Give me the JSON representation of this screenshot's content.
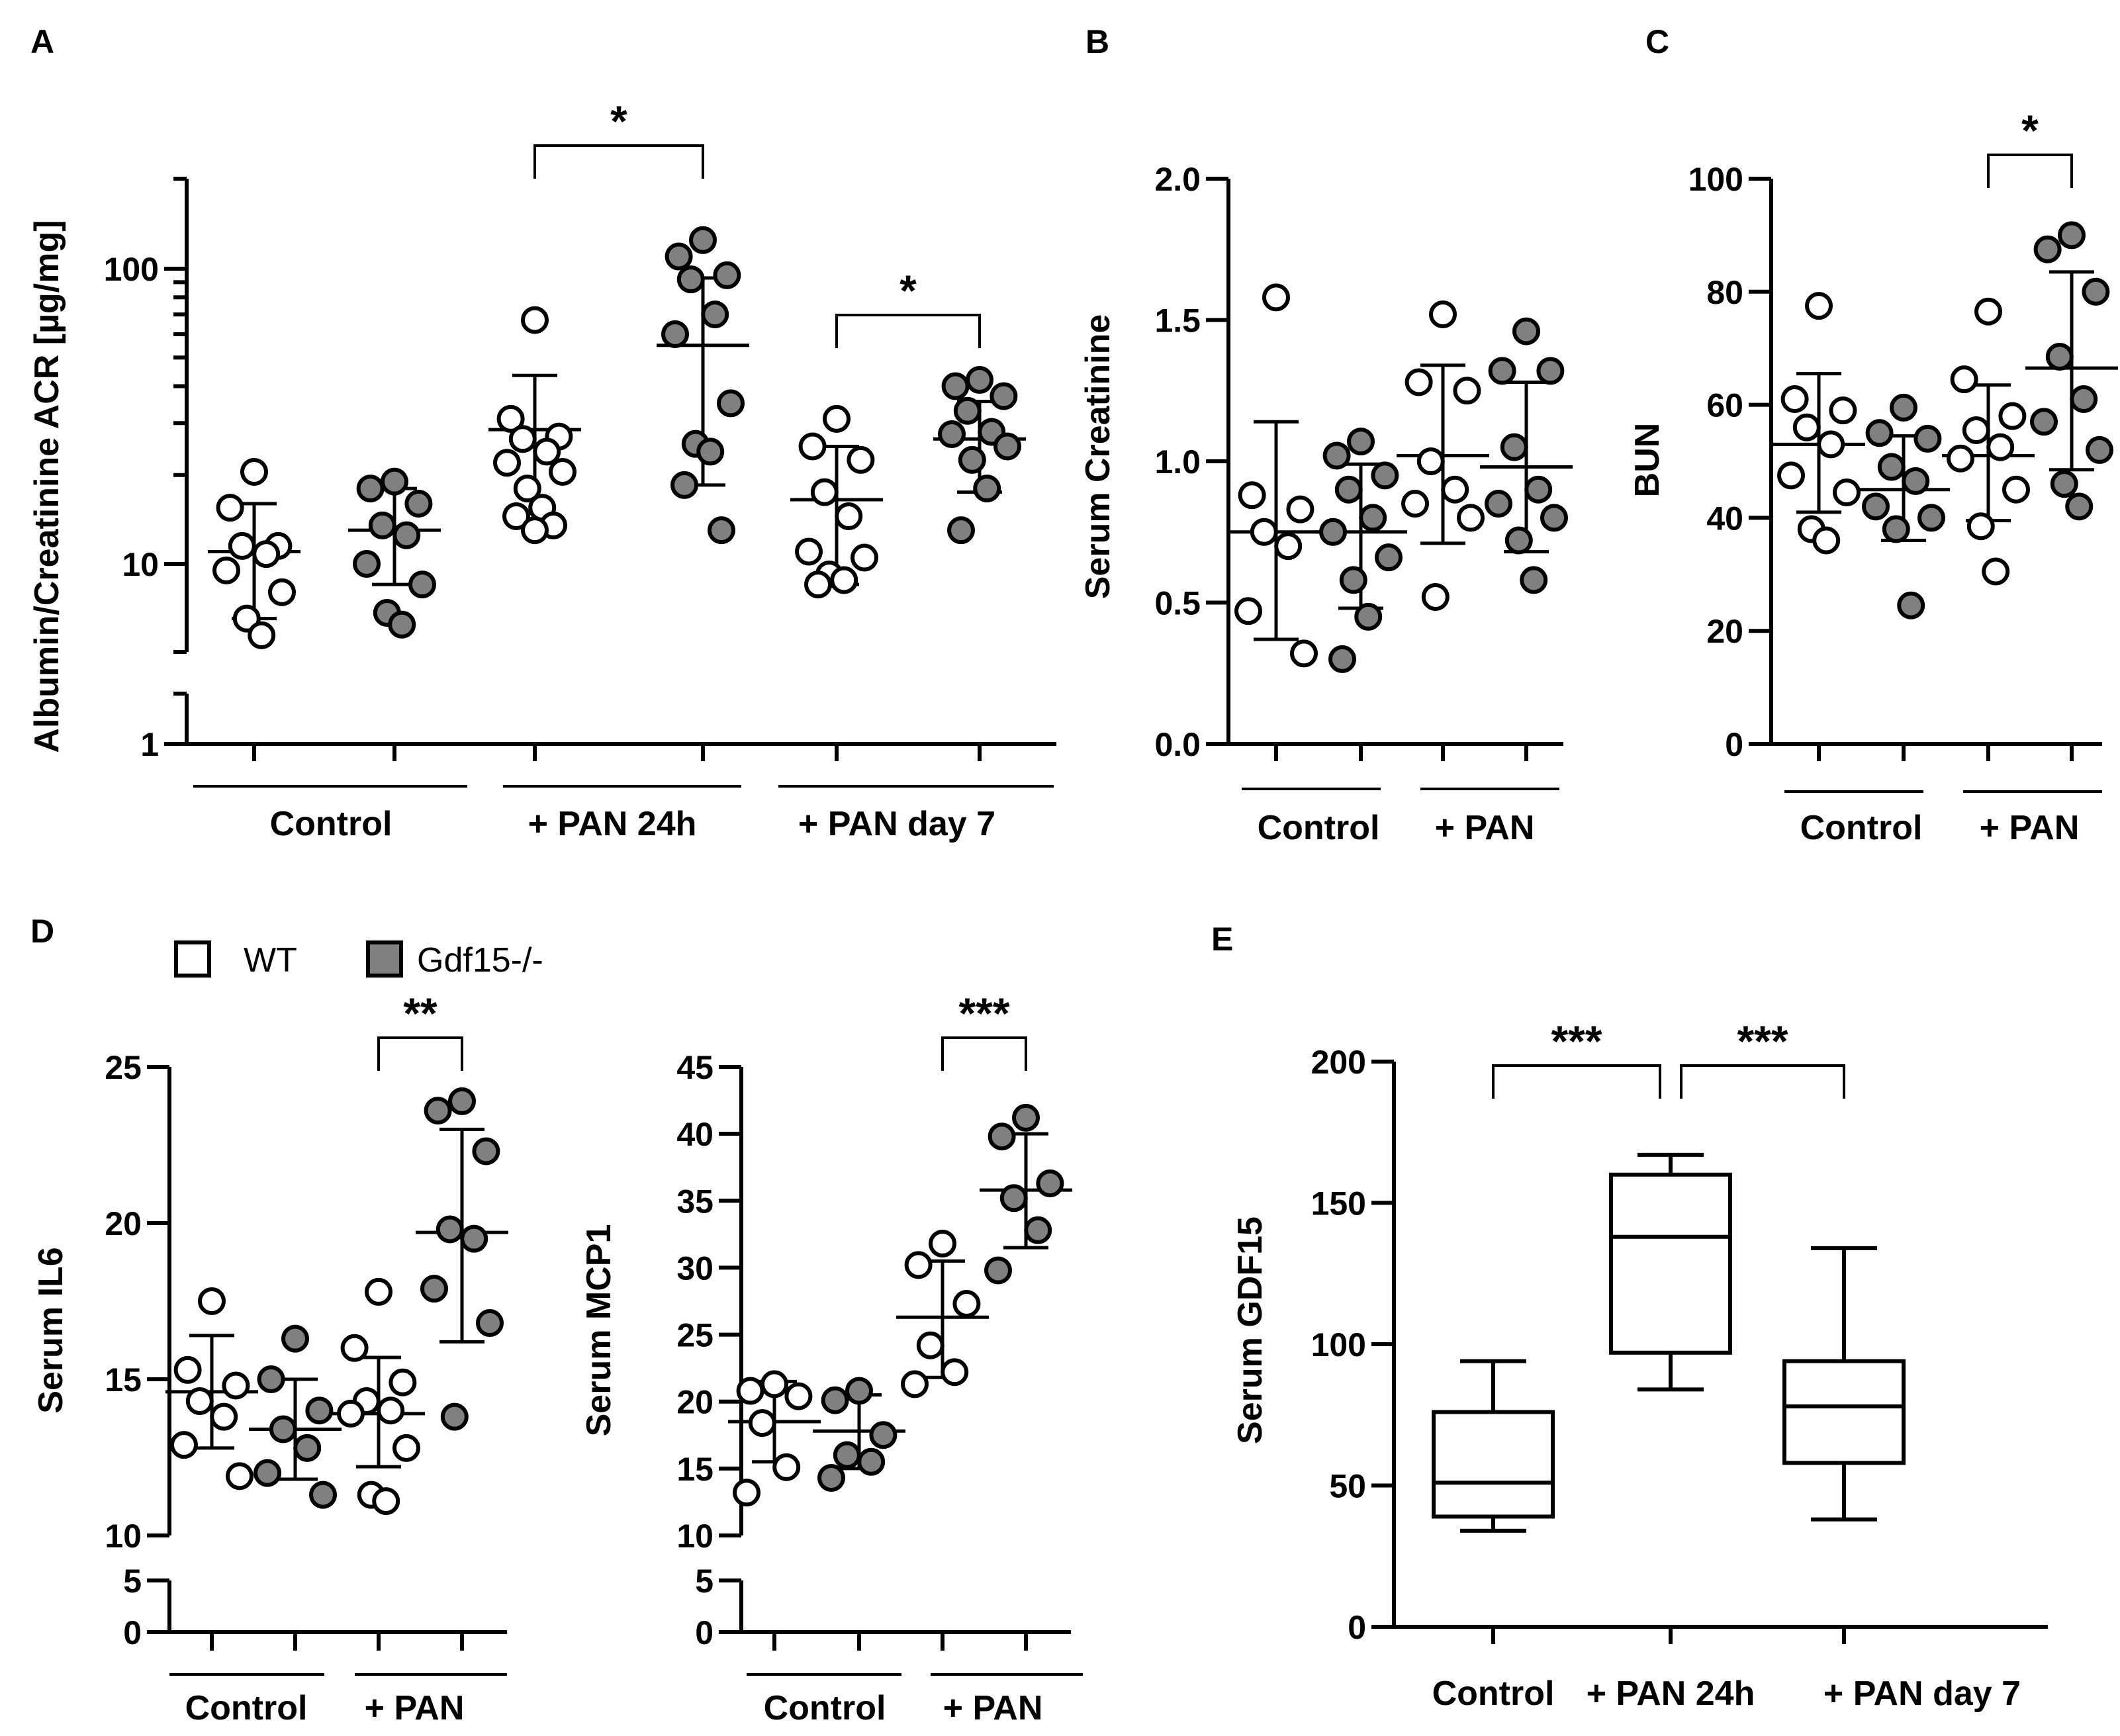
{
  "legend": {
    "wt": {
      "label": "WT",
      "color": "#ffffff"
    },
    "ko": {
      "label": "Gdf15-/-",
      "color": "#808080"
    }
  },
  "chart_data": [
    {
      "id": "A",
      "panel_label": "A",
      "type": "scatter",
      "ylabel": "Albumin/Creatinine ACR [µg/mg]",
      "yscale": "log",
      "ylim": [
        1,
        200
      ],
      "yticks": [
        {
          "v": 1,
          "label": "1"
        },
        {
          "v": 10,
          "label": "10"
        },
        {
          "v": 100,
          "label": "100"
        }
      ],
      "axis_break": [
        2.2,
        3.2
      ],
      "groups": [
        {
          "label": "Control",
          "from": 0,
          "to": 1
        },
        {
          "label": "+ PAN 24h",
          "from": 2,
          "to": 3
        },
        {
          "label": "+ PAN day 7",
          "from": 4,
          "to": 5
        }
      ],
      "series": [
        {
          "genotype": "wt",
          "values": [
            20.5,
            15.5,
            11.5,
            11.5,
            10.8,
            9.5,
            8.0,
            6.5,
            5.7
          ],
          "mean": 11.0,
          "sd_low": 6.5,
          "sd_high": 16.0
        },
        {
          "genotype": "ko",
          "values": [
            19.0,
            18.0,
            16.0,
            13.5,
            12.5,
            10.0,
            8.5,
            6.8,
            6.2
          ],
          "mean": 13.0,
          "sd_low": 8.5,
          "sd_high": 18.0
        },
        {
          "genotype": "wt",
          "values": [
            67.0,
            31.0,
            27.0,
            26.5,
            24.0,
            22.0,
            20.5,
            18.0,
            15.5,
            14.5,
            13.5,
            13.0
          ],
          "mean": 28.5,
          "sd_low": 13.5,
          "sd_high": 43.5
        },
        {
          "genotype": "ko",
          "values": [
            125.0,
            110.0,
            95.0,
            92.0,
            70.0,
            60.0,
            35.0,
            25.5,
            24.0,
            18.5,
            13.0
          ],
          "mean": 55.0,
          "sd_low": 18.5,
          "sd_high": 93.0
        },
        {
          "genotype": "wt",
          "values": [
            31.0,
            25.0,
            22.5,
            17.5,
            14.5,
            11.0,
            10.5,
            9.2,
            8.8,
            8.5
          ],
          "mean": 16.5,
          "sd_low": 8.5,
          "sd_high": 25.0
        },
        {
          "genotype": "ko",
          "values": [
            42.0,
            40.0,
            37.0,
            33.0,
            28.0,
            27.5,
            25.0,
            22.5,
            18.0,
            13.0
          ],
          "mean": 26.5,
          "sd_low": 17.5,
          "sd_high": 35.5
        }
      ],
      "brackets": [
        {
          "from": 2,
          "to": 3,
          "label": "*"
        },
        {
          "from": 4,
          "to": 5,
          "label": "*"
        }
      ]
    },
    {
      "id": "B",
      "panel_label": "B",
      "type": "scatter",
      "ylabel": "Serum Creatinine",
      "yscale": "linear",
      "ylim": [
        0,
        2
      ],
      "yticks": [
        {
          "v": 0,
          "label": "0.0"
        },
        {
          "v": 0.5,
          "label": "0.5"
        },
        {
          "v": 1,
          "label": "1.0"
        },
        {
          "v": 1.5,
          "label": "1.5"
        },
        {
          "v": 2,
          "label": "2.0"
        }
      ],
      "groups": [
        {
          "label": "Control",
          "from": 0,
          "to": 1
        },
        {
          "label": "+ PAN",
          "from": 2,
          "to": 3
        }
      ],
      "series": [
        {
          "genotype": "wt",
          "values": [
            1.58,
            0.88,
            0.83,
            0.75,
            0.7,
            0.47,
            0.32
          ],
          "mean": 0.75,
          "sd_low": 0.37,
          "sd_high": 1.14
        },
        {
          "genotype": "ko",
          "values": [
            1.07,
            1.02,
            0.95,
            0.9,
            0.8,
            0.75,
            0.66,
            0.58,
            0.45,
            0.3
          ],
          "mean": 0.75,
          "sd_low": 0.48,
          "sd_high": 0.99
        },
        {
          "genotype": "wt",
          "values": [
            1.52,
            1.28,
            1.25,
            1.0,
            0.9,
            0.85,
            0.8,
            0.52
          ],
          "mean": 1.02,
          "sd_low": 0.71,
          "sd_high": 1.34
        },
        {
          "genotype": "ko",
          "values": [
            1.46,
            1.32,
            1.32,
            1.05,
            0.9,
            0.85,
            0.8,
            0.72,
            0.58
          ],
          "mean": 0.98,
          "sd_low": 0.68,
          "sd_high": 1.28
        }
      ],
      "brackets": []
    },
    {
      "id": "C",
      "panel_label": "C",
      "type": "scatter",
      "ylabel": "BUN",
      "yscale": "linear",
      "ylim": [
        0,
        100
      ],
      "yticks": [
        {
          "v": 0,
          "label": "0"
        },
        {
          "v": 20,
          "label": "20"
        },
        {
          "v": 40,
          "label": "40"
        },
        {
          "v": 60,
          "label": "60"
        },
        {
          "v": 80,
          "label": "80"
        },
        {
          "v": 100,
          "label": "100"
        }
      ],
      "groups": [
        {
          "label": "Control",
          "from": 0,
          "to": 1
        },
        {
          "label": "+ PAN",
          "from": 2,
          "to": 3
        }
      ],
      "series": [
        {
          "genotype": "wt",
          "values": [
            77.5,
            61.0,
            59.0,
            56.0,
            53.0,
            47.5,
            44.5,
            38.0,
            36.0
          ],
          "mean": 53.0,
          "sd_low": 41.0,
          "sd_high": 65.5
        },
        {
          "genotype": "ko",
          "values": [
            59.5,
            55.0,
            54.0,
            49.0,
            46.5,
            42.0,
            40.0,
            38.0,
            24.5
          ],
          "mean": 45.0,
          "sd_low": 36.0,
          "sd_high": 54.5
        },
        {
          "genotype": "wt",
          "values": [
            76.5,
            64.5,
            58.0,
            55.5,
            52.5,
            50.5,
            45.0,
            38.5,
            30.5
          ],
          "mean": 51.0,
          "sd_low": 39.5,
          "sd_high": 63.5
        },
        {
          "genotype": "ko",
          "values": [
            90.0,
            87.5,
            80.0,
            68.5,
            61.0,
            57.0,
            52.0,
            46.0,
            42.0
          ],
          "mean": 66.5,
          "sd_low": 48.5,
          "sd_high": 83.5
        }
      ],
      "brackets": [
        {
          "from": 2,
          "to": 3,
          "label": "*"
        }
      ]
    },
    {
      "id": "D1",
      "panel_label": "D",
      "type": "scatter",
      "ylabel": "Serum IL6",
      "yscale": "linear_break",
      "ylim": [
        0,
        25
      ],
      "yticks": [
        {
          "v": 0,
          "label": "0"
        },
        {
          "v": 5,
          "label": "5"
        },
        {
          "v": 10,
          "label": "10"
        },
        {
          "v": 15,
          "label": "15"
        },
        {
          "v": 20,
          "label": "20"
        },
        {
          "v": 25,
          "label": "25"
        }
      ],
      "axis_break": [
        5,
        10
      ],
      "groups": [
        {
          "label": "Control",
          "from": 0,
          "to": 1
        },
        {
          "label": "+ PAN",
          "from": 2,
          "to": 3
        }
      ],
      "series": [
        {
          "genotype": "wt",
          "values": [
            17.5,
            15.3,
            14.8,
            14.3,
            13.8,
            12.9,
            11.9
          ],
          "mean": 14.6,
          "sd_low": 12.8,
          "sd_high": 16.4
        },
        {
          "genotype": "ko",
          "values": [
            16.3,
            15.0,
            14.0,
            13.4,
            12.8,
            12.0,
            11.3
          ],
          "mean": 13.4,
          "sd_low": 11.8,
          "sd_high": 15.0
        },
        {
          "genotype": "wt",
          "values": [
            17.8,
            16.0,
            14.9,
            14.3,
            14.0,
            13.9,
            12.8,
            11.3,
            11.1
          ],
          "mean": 13.9,
          "sd_low": 12.2,
          "sd_high": 15.7
        },
        {
          "genotype": "ko",
          "values": [
            23.9,
            23.6,
            22.3,
            19.8,
            19.5,
            17.9,
            16.8,
            13.8
          ],
          "mean": 19.7,
          "sd_low": 16.2,
          "sd_high": 23.0
        }
      ],
      "brackets": [
        {
          "from": 2,
          "to": 3,
          "label": "**"
        }
      ]
    },
    {
      "id": "D2",
      "panel_label": "",
      "type": "scatter",
      "ylabel": "Serum MCP1",
      "yscale": "linear_break",
      "ylim": [
        0,
        45
      ],
      "yticks": [
        {
          "v": 0,
          "label": "0"
        },
        {
          "v": 5,
          "label": "5"
        },
        {
          "v": 10,
          "label": "10"
        },
        {
          "v": 15,
          "label": "15"
        },
        {
          "v": 20,
          "label": "20"
        },
        {
          "v": 25,
          "label": "25"
        },
        {
          "v": 30,
          "label": "30"
        },
        {
          "v": 35,
          "label": "35"
        },
        {
          "v": 40,
          "label": "40"
        },
        {
          "v": 45,
          "label": "45"
        }
      ],
      "axis_break": [
        5,
        10
      ],
      "groups": [
        {
          "label": "Control",
          "from": 0,
          "to": 1
        },
        {
          "label": "+ PAN",
          "from": 2,
          "to": 3
        }
      ],
      "series": [
        {
          "genotype": "wt",
          "values": [
            21.3,
            20.8,
            20.4,
            18.4,
            15.1,
            13.2
          ],
          "mean": 18.5,
          "sd_low": 15.5,
          "sd_high": 21.5
        },
        {
          "genotype": "ko",
          "values": [
            20.8,
            20.1,
            17.5,
            16.0,
            15.5,
            14.3
          ],
          "mean": 17.8,
          "sd_low": 15.0,
          "sd_high": 20.5
        },
        {
          "genotype": "wt",
          "values": [
            31.8,
            30.2,
            27.3,
            24.2,
            22.2,
            21.3
          ],
          "mean": 26.3,
          "sd_low": 21.8,
          "sd_high": 30.5
        },
        {
          "genotype": "ko",
          "values": [
            41.2,
            39.8,
            36.3,
            35.2,
            32.8,
            29.8
          ],
          "mean": 35.8,
          "sd_low": 31.5,
          "sd_high": 40.0
        }
      ],
      "brackets": [
        {
          "from": 2,
          "to": 3,
          "label": "***"
        }
      ]
    },
    {
      "id": "E",
      "panel_label": "E",
      "type": "box",
      "ylabel": "Serum GDF15",
      "yscale": "linear",
      "ylim": [
        0,
        200
      ],
      "yticks": [
        {
          "v": 0,
          "label": "0"
        },
        {
          "v": 50,
          "label": "50"
        },
        {
          "v": 100,
          "label": "100"
        },
        {
          "v": 150,
          "label": "150"
        },
        {
          "v": 200,
          "label": "200"
        }
      ],
      "categories": [
        "Control",
        "+ PAN 24h",
        "+ PAN day 7"
      ],
      "boxes": [
        {
          "min": 34,
          "q1": 39,
          "median": 51,
          "q3": 76,
          "max": 94
        },
        {
          "min": 84,
          "q1": 97,
          "median": 138,
          "q3": 160,
          "max": 167
        },
        {
          "min": 38,
          "q1": 58,
          "median": 78,
          "q3": 94,
          "max": 134
        }
      ],
      "brackets": [
        {
          "from": 0,
          "to": 1,
          "label": "***"
        },
        {
          "from": 1,
          "to": 2,
          "label": "***"
        }
      ]
    }
  ]
}
